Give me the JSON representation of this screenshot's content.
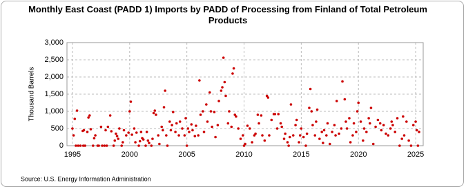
{
  "chart_data": {
    "type": "scatter",
    "title": "Monthly East Coast (PADD 1) Imports by PADD of Processing from Finland of Total Petroleum Products",
    "y_label": "Thousand Barrels",
    "source": "Source: U.S. Energy Information Administration",
    "xlim": [
      1994.52,
      2025.66
    ],
    "ylim": [
      0,
      3000
    ],
    "xticks": [
      1995,
      2000,
      2005,
      2010,
      2015,
      2020,
      2025
    ],
    "yticks": [
      0,
      500,
      {
        "value": 1000,
        "label": "1,000"
      },
      {
        "value": 1500,
        "label": "1,500"
      },
      {
        "value": 2000,
        "label": "2,000"
      },
      {
        "value": 2500,
        "label": "2,500"
      },
      {
        "value": 3000,
        "label": "3,000"
      }
    ],
    "grid": true,
    "color": "#cc0000",
    "x": [
      1995.0,
      1995.1,
      1995.2,
      1995.3,
      1995.4,
      1995.5,
      1995.7,
      1995.9,
      1995.95,
      1996.0,
      1996.1,
      1996.3,
      1996.4,
      1996.5,
      1996.6,
      1996.8,
      1996.9,
      1997.0,
      1997.2,
      1997.3,
      1997.5,
      1997.6,
      1997.8,
      1997.9,
      1998.0,
      1998.1,
      1998.3,
      1998.4,
      1998.6,
      1998.7,
      1998.8,
      1998.9,
      1999.0,
      1999.1,
      1999.3,
      1999.4,
      1999.5,
      1999.7,
      1999.9,
      2000.0,
      2000.1,
      2000.2,
      2000.4,
      2000.5,
      2000.6,
      2000.8,
      2000.9,
      2001.0,
      2001.1,
      2001.2,
      2001.4,
      2001.5,
      2001.6,
      2001.7,
      2001.9,
      2002.0,
      2002.1,
      2002.2,
      2002.3,
      2002.5,
      2002.6,
      2002.8,
      2002.9,
      2003.0,
      2003.1,
      2003.2,
      2003.3,
      2003.5,
      2003.6,
      2003.7,
      2003.8,
      2004.0,
      2004.1,
      2004.3,
      2004.4,
      2004.6,
      2004.8,
      2004.9,
      2005.0,
      2005.1,
      2005.2,
      2005.4,
      2005.5,
      2005.7,
      2005.8,
      2006.0,
      2006.1,
      2006.2,
      2006.4,
      2006.5,
      2006.7,
      2006.8,
      2007.0,
      2007.1,
      2007.2,
      2007.4,
      2007.5,
      2007.7,
      2007.8,
      2008.0,
      2008.1,
      2008.2,
      2008.3,
      2008.4,
      2008.6,
      2008.7,
      2008.9,
      2009.0,
      2009.1,
      2009.2,
      2009.3,
      2009.5,
      2009.7,
      2009.9,
      2010.0,
      2010.1,
      2010.3,
      2010.5,
      2010.7,
      2010.9,
      2011.0,
      2011.2,
      2011.3,
      2011.5,
      2011.6,
      2011.8,
      2012.0,
      2012.1,
      2012.2,
      2012.4,
      2012.6,
      2012.7,
      2012.9,
      2013.0,
      2013.2,
      2013.3,
      2013.5,
      2013.6,
      2013.8,
      2013.9,
      2014.0,
      2014.1,
      2014.3,
      2014.5,
      2014.6,
      2014.8,
      2014.9,
      2015.0,
      2015.2,
      2015.4,
      2015.5,
      2015.7,
      2015.8,
      2015.9,
      2016.0,
      2016.2,
      2016.3,
      2016.4,
      2016.6,
      2016.8,
      2016.9,
      2017.0,
      2017.2,
      2017.3,
      2017.5,
      2017.7,
      2017.9,
      2018.0,
      2018.1,
      2018.3,
      2018.5,
      2018.6,
      2018.8,
      2018.9,
      2019.0,
      2019.2,
      2019.3,
      2019.5,
      2019.6,
      2019.8,
      2019.9,
      2020.0,
      2020.2,
      2020.4,
      2020.5,
      2020.7,
      2020.9,
      2021.0,
      2021.1,
      2021.3,
      2021.5,
      2021.7,
      2021.9,
      2022.0,
      2022.2,
      2022.4,
      2022.6,
      2022.8,
      2022.9,
      2023.0,
      2023.2,
      2023.4,
      2023.6,
      2023.8,
      2023.9,
      2024.0,
      2024.2,
      2024.4,
      2024.6,
      2024.8,
      2025.0,
      2025.1,
      2025.2,
      2025.3
    ],
    "values": [
      500,
      300,
      780,
      0,
      1020,
      0,
      0,
      430,
      0,
      450,
      0,
      400,
      820,
      880,
      480,
      0,
      220,
      300,
      0,
      0,
      550,
      0,
      0,
      450,
      0,
      550,
      880,
      420,
      0,
      150,
      350,
      280,
      200,
      500,
      0,
      100,
      450,
      300,
      380,
      1000,
      1280,
      320,
      500,
      100,
      380,
      0,
      130,
      400,
      220,
      180,
      0,
      400,
      150,
      80,
      0,
      200,
      950,
      1020,
      900,
      300,
      50,
      550,
      450,
      1120,
      1600,
      300,
      0,
      700,
      450,
      600,
      980,
      400,
      650,
      300,
      700,
      500,
      300,
      800,
      0,
      500,
      400,
      620,
      450,
      280,
      580,
      300,
      1900,
      900,
      1000,
      400,
      1200,
      700,
      1550,
      1000,
      550,
      980,
      250,
      600,
      1300,
      1600,
      1700,
      2560,
      1850,
      1450,
      650,
      1000,
      550,
      2100,
      2250,
      900,
      850,
      500,
      200,
      300,
      0,
      50,
      580,
      500,
      100,
      300,
      350,
      900,
      650,
      880,
      300,
      150,
      1450,
      1400,
      300,
      750,
      920,
      920,
      500,
      920,
      650,
      550,
      200,
      350,
      100,
      0,
      250,
      1200,
      300,
      600,
      750,
      100,
      300,
      500,
      250,
      0,
      350,
      1100,
      1650,
      1000,
      600,
      300,
      700,
      1050,
      200,
      400,
      80,
      450,
      300,
      650,
      50,
      400,
      600,
      300,
      1300,
      350,
      500,
      1870,
      1350,
      700,
      500,
      800,
      100,
      300,
      650,
      400,
      1000,
      1250,
      700,
      150,
      500,
      400,
      800,
      650,
      1100,
      50,
      550,
      750,
      650,
      450,
      600,
      350,
      300,
      500,
      700,
      600,
      400,
      800,
      0,
      200,
      850,
      300,
      700,
      150,
      0,
      600,
      700,
      450,
      0,
      400
    ]
  }
}
